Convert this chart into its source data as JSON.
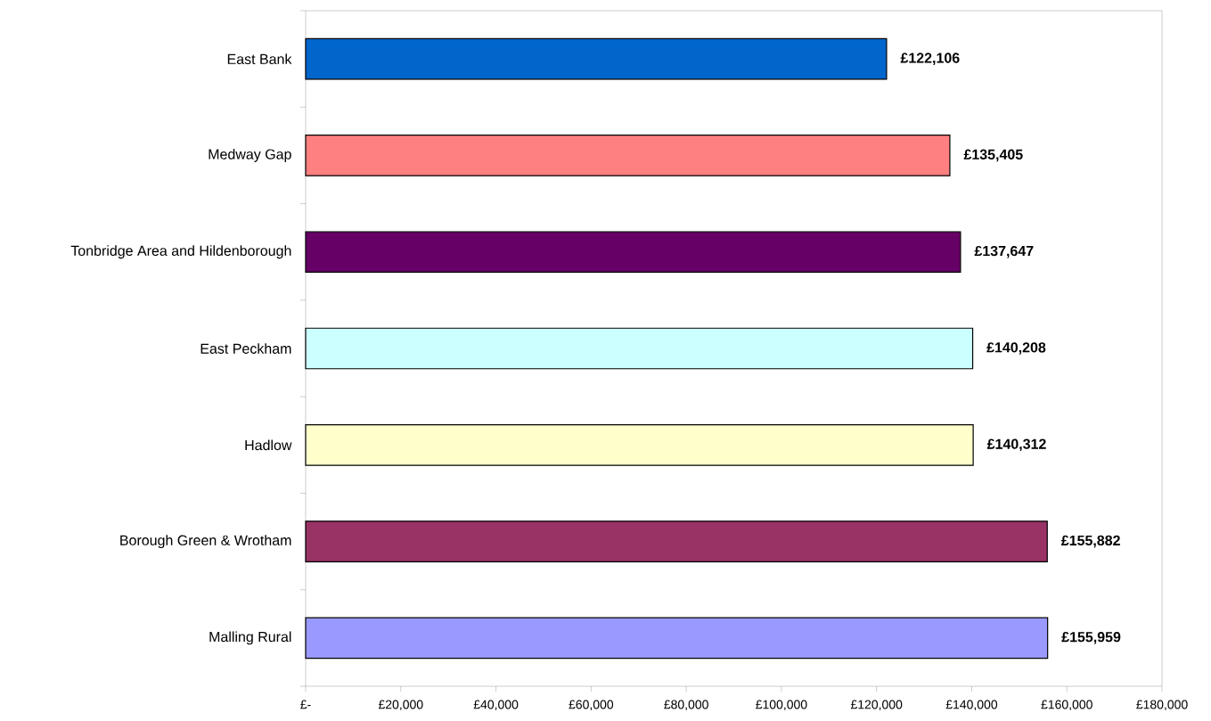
{
  "chart_data": {
    "type": "bar",
    "orientation": "horizontal",
    "categories": [
      "East Bank",
      "Medway Gap",
      "Tonbridge Area and Hildenborough",
      "East Peckham",
      "Hadlow",
      "Borough Green & Wrotham",
      "Malling Rural"
    ],
    "values": [
      122106,
      135405,
      137647,
      140208,
      140312,
      155882,
      155959
    ],
    "colors": [
      "#0066cc",
      "#ff8080",
      "#660066",
      "#ccffff",
      "#ffffcc",
      "#993366",
      "#9999ff"
    ],
    "value_labels": [
      "£122,106",
      "£135,405",
      "£137,647",
      "£140,208",
      "£140,312",
      "£155,882",
      "£155,959"
    ],
    "xlim": [
      0,
      180000
    ],
    "xticks": [
      {
        "value": 0,
        "label": "£-"
      },
      {
        "value": 20000,
        "label": "£20,000"
      },
      {
        "value": 40000,
        "label": "£40,000"
      },
      {
        "value": 60000,
        "label": "£60,000"
      },
      {
        "value": 80000,
        "label": "£80,000"
      },
      {
        "value": 100000,
        "label": "£100,000"
      },
      {
        "value": 120000,
        "label": "£120,000"
      },
      {
        "value": 140000,
        "label": "£140,000"
      },
      {
        "value": 160000,
        "label": "£160,000"
      },
      {
        "value": 180000,
        "label": "£180,000"
      }
    ]
  }
}
